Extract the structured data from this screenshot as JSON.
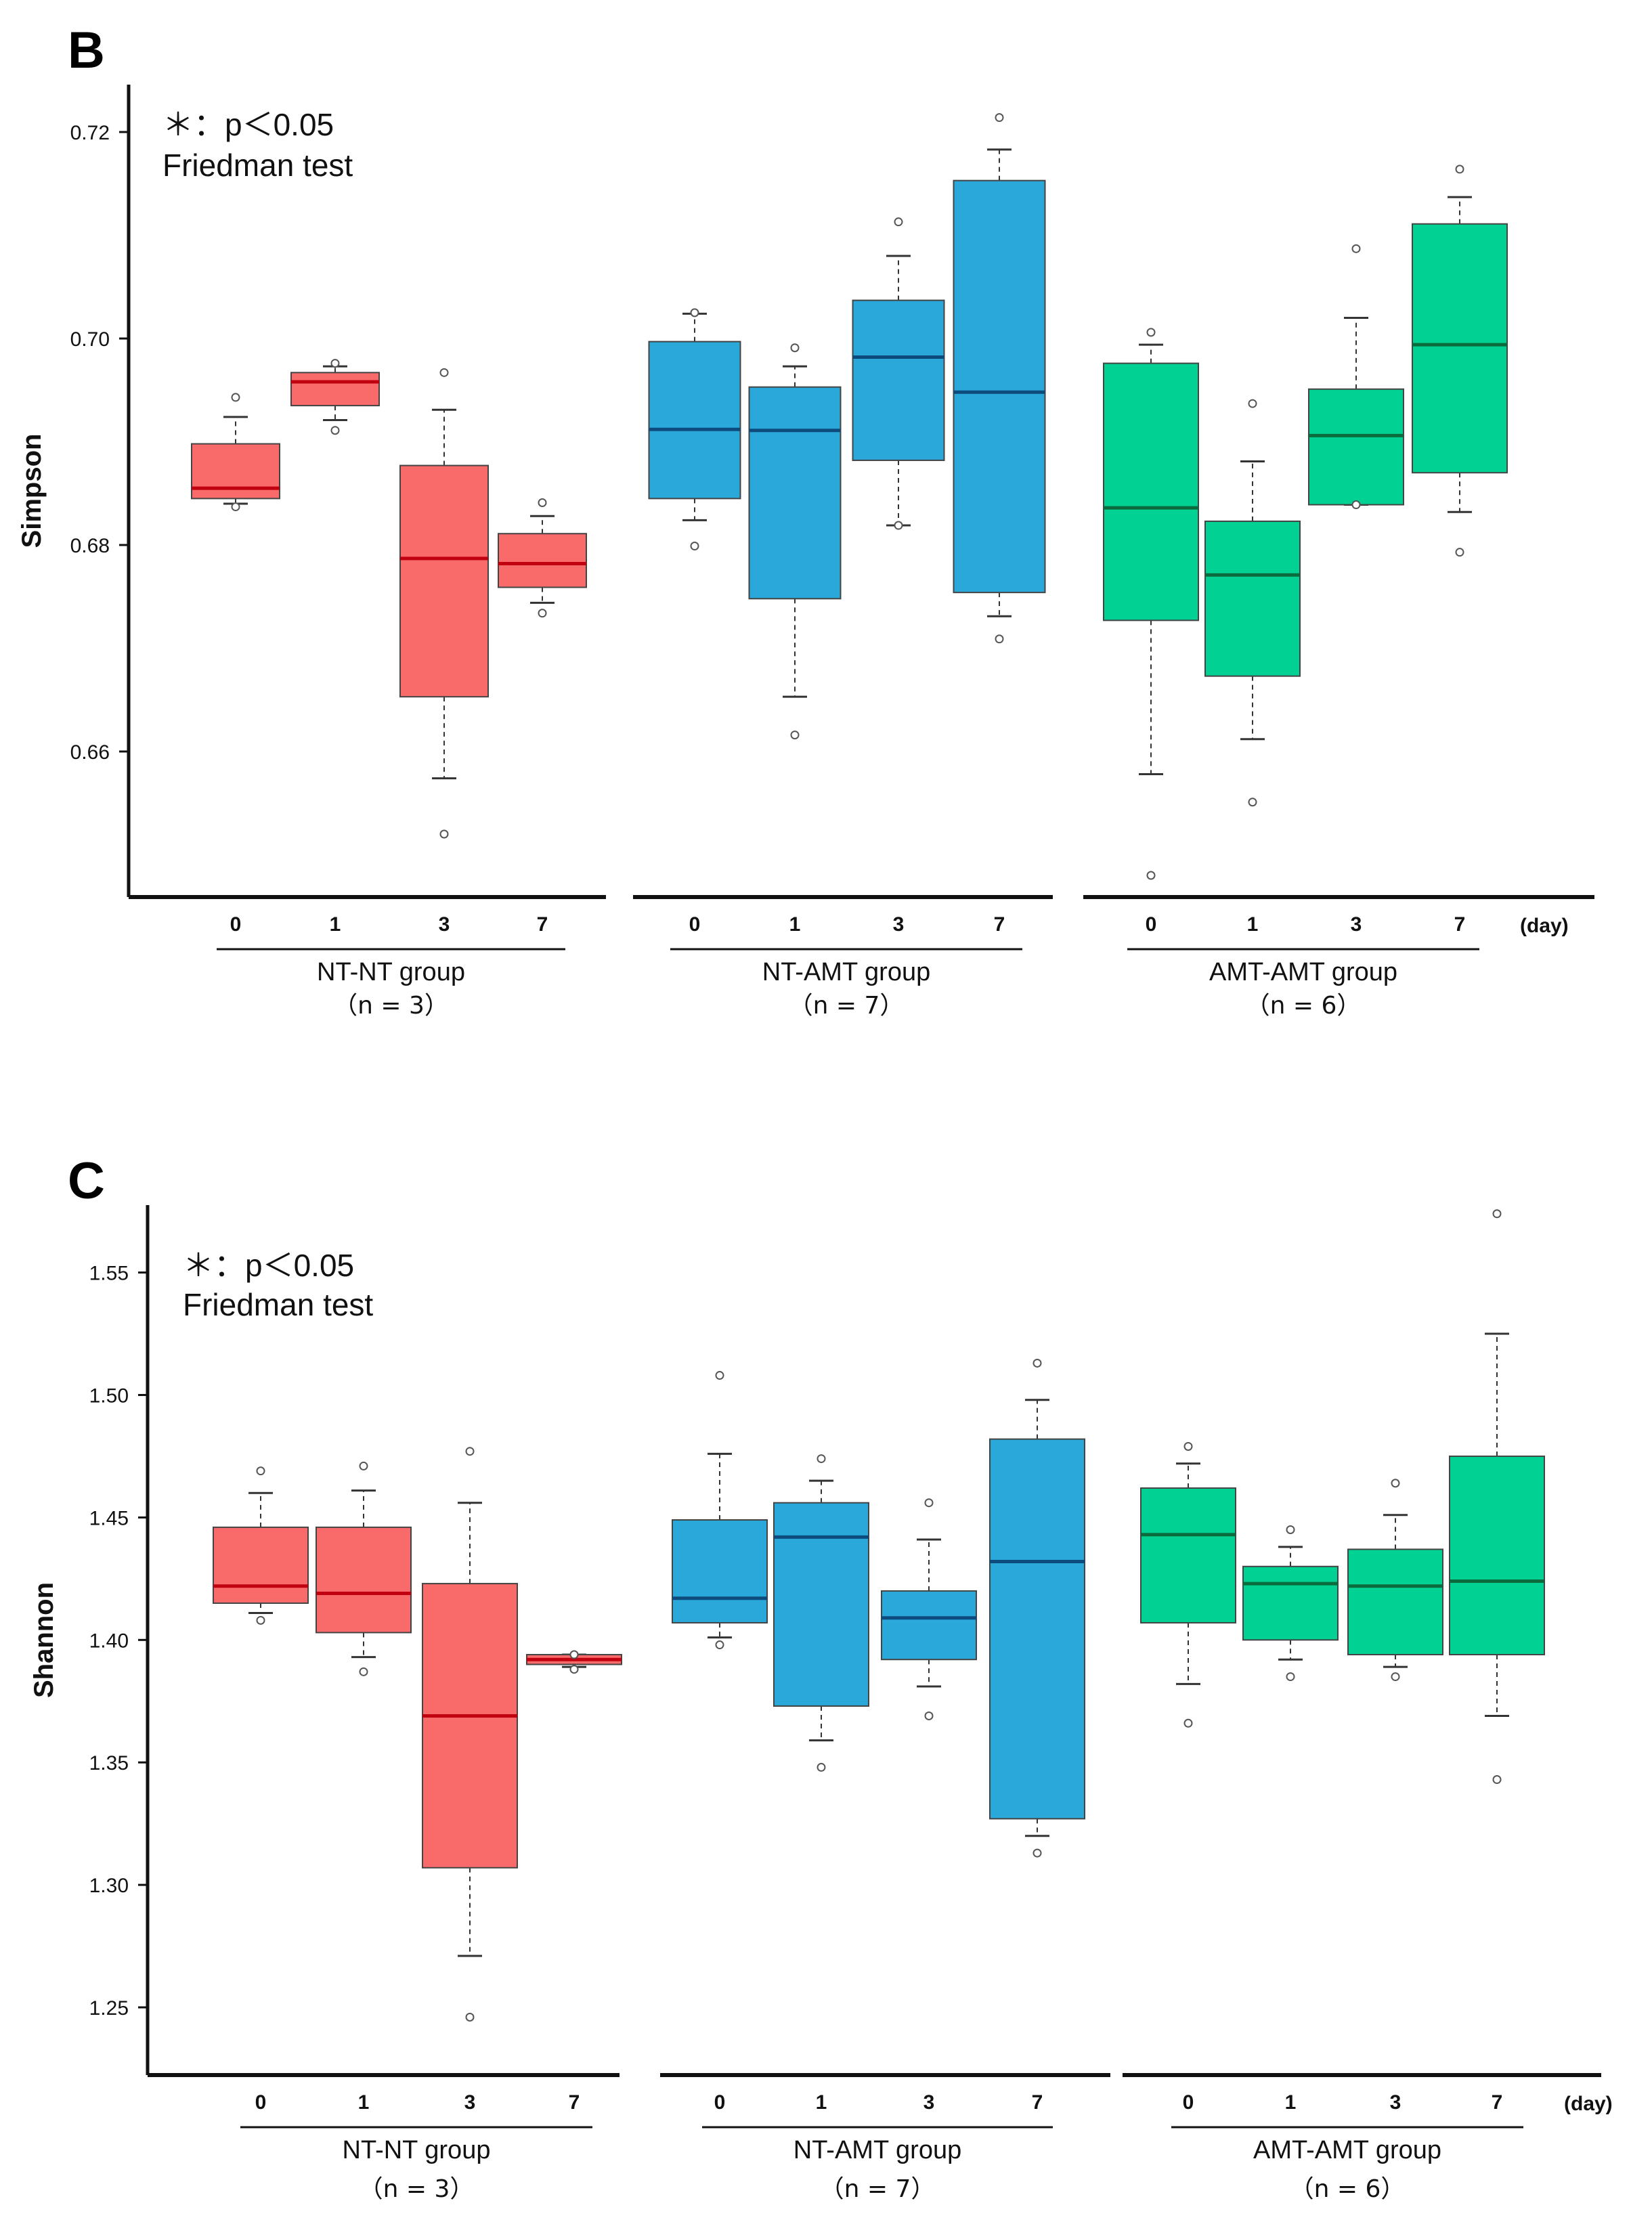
{
  "chart_data": [
    {
      "type": "boxplot",
      "panel_label": "B",
      "ylabel": "Simpson",
      "yticks": [
        "0.66",
        "0.68",
        "0.70",
        "0.72"
      ],
      "ylim": [
        0.646,
        0.724
      ],
      "annotation_line1": "＊：p＜0.05",
      "annotation_line2": "Friedman test",
      "x_unit": "(day)",
      "groups": [
        {
          "name": "NT-NT group",
          "n_label": "（n = 3）",
          "color": "#f96a6b",
          "median_color": "#c0000f",
          "boxes": [
            {
              "day": "0",
              "whisker_low": 0.684,
              "q1": 0.6845,
              "median": 0.6855,
              "q3": 0.6898,
              "whisker_high": 0.6924,
              "outliers": [
                0.6837,
                0.6943
              ]
            },
            {
              "day": "1",
              "whisker_low": 0.6921,
              "q1": 0.6935,
              "median": 0.6958,
              "q3": 0.6967,
              "whisker_high": 0.6973,
              "outliers": [
                0.6911,
                0.6976
              ]
            },
            {
              "day": "3",
              "whisker_low": 0.6574,
              "q1": 0.6653,
              "median": 0.6787,
              "q3": 0.6877,
              "whisker_high": 0.6931,
              "outliers": [
                0.652,
                0.6967
              ]
            },
            {
              "day": "7",
              "whisker_low": 0.6744,
              "q1": 0.6759,
              "median": 0.6782,
              "q3": 0.6811,
              "whisker_high": 0.6828,
              "outliers": [
                0.6734,
                0.6841
              ]
            }
          ]
        },
        {
          "name": "NT-AMT group",
          "n_label": "（n = 7）",
          "color": "#2aa8d9",
          "median_color": "#0d4b7c",
          "boxes": [
            {
              "day": "0",
              "whisker_low": 0.6824,
              "q1": 0.6845,
              "median": 0.6912,
              "q3": 0.6997,
              "whisker_high": 0.7024,
              "outliers": [
                0.6799,
                0.7025
              ]
            },
            {
              "day": "1",
              "whisker_low": 0.6653,
              "q1": 0.6748,
              "median": 0.6911,
              "q3": 0.6953,
              "whisker_high": 0.6973,
              "outliers": [
                0.6616,
                0.6991
              ]
            },
            {
              "day": "3",
              "whisker_low": 0.6819,
              "q1": 0.6882,
              "median": 0.6982,
              "q3": 0.7037,
              "whisker_high": 0.708,
              "outliers": [
                0.6819,
                0.7113
              ]
            },
            {
              "day": "7",
              "whisker_low": 0.6731,
              "q1": 0.6754,
              "median": 0.6948,
              "q3": 0.7153,
              "whisker_high": 0.7183,
              "outliers": [
                0.6709,
                0.7214
              ]
            }
          ]
        },
        {
          "name": "AMT-AMT group",
          "n_label": "（n = 6）",
          "color": "#02d194",
          "median_color": "#0c6b3c",
          "boxes": [
            {
              "day": "0",
              "whisker_low": 0.6578,
              "q1": 0.6727,
              "median": 0.6836,
              "q3": 0.6976,
              "whisker_high": 0.6994,
              "outliers": [
                0.648,
                0.7006
              ]
            },
            {
              "day": "1",
              "whisker_low": 0.6612,
              "q1": 0.6673,
              "median": 0.6771,
              "q3": 0.6823,
              "whisker_high": 0.6881,
              "outliers": [
                0.6551,
                0.6937
              ]
            },
            {
              "day": "3",
              "whisker_low": 0.6839,
              "q1": 0.6839,
              "median": 0.6906,
              "q3": 0.6951,
              "whisker_high": 0.702,
              "outliers": [
                0.6839,
                0.7087
              ]
            },
            {
              "day": "7",
              "whisker_low": 0.6832,
              "q1": 0.687,
              "median": 0.6994,
              "q3": 0.7111,
              "whisker_high": 0.7137,
              "outliers": [
                0.6793,
                0.7164
              ]
            }
          ]
        }
      ]
    },
    {
      "type": "boxplot",
      "panel_label": "C",
      "ylabel": "Shannon",
      "yticks": [
        "1.25",
        "1.30",
        "1.35",
        "1.40",
        "1.45",
        "1.50",
        "1.55"
      ],
      "ylim": [
        1.231,
        1.584
      ],
      "annotation_line1": "＊：p＜0.05",
      "annotation_line2": "Friedman test",
      "x_unit": "(day)",
      "groups": [
        {
          "name": "NT-NT group",
          "n_label": "（n = 3）",
          "color": "#f96a6b",
          "median_color": "#c0000f",
          "boxes": [
            {
              "day": "0",
              "whisker_low": 1.411,
              "q1": 1.415,
              "median": 1.422,
              "q3": 1.446,
              "whisker_high": 1.46,
              "outliers": [
                1.408,
                1.469
              ]
            },
            {
              "day": "1",
              "whisker_low": 1.393,
              "q1": 1.403,
              "median": 1.419,
              "q3": 1.446,
              "whisker_high": 1.461,
              "outliers": [
                1.387,
                1.471
              ]
            },
            {
              "day": "3",
              "whisker_low": 1.271,
              "q1": 1.307,
              "median": 1.369,
              "q3": 1.423,
              "whisker_high": 1.456,
              "outliers": [
                1.246,
                1.477
              ]
            },
            {
              "day": "7",
              "whisker_low": 1.389,
              "q1": 1.39,
              "median": 1.392,
              "q3": 1.394,
              "whisker_high": 1.394,
              "outliers": [
                1.388,
                1.394
              ]
            }
          ]
        },
        {
          "name": "NT-AMT group",
          "n_label": "（n = 7）",
          "color": "#2aa8d9",
          "median_color": "#0d4b7c",
          "boxes": [
            {
              "day": "0",
              "whisker_low": 1.401,
              "q1": 1.407,
              "median": 1.417,
              "q3": 1.449,
              "whisker_high": 1.476,
              "outliers": [
                1.398,
                1.508
              ]
            },
            {
              "day": "1",
              "whisker_low": 1.359,
              "q1": 1.373,
              "median": 1.442,
              "q3": 1.456,
              "whisker_high": 1.465,
              "outliers": [
                1.348,
                1.474
              ]
            },
            {
              "day": "3",
              "whisker_low": 1.381,
              "q1": 1.392,
              "median": 1.409,
              "q3": 1.42,
              "whisker_high": 1.441,
              "outliers": [
                1.369,
                1.456
              ]
            },
            {
              "day": "7",
              "whisker_low": 1.32,
              "q1": 1.327,
              "median": 1.432,
              "q3": 1.482,
              "whisker_high": 1.498,
              "outliers": [
                1.313,
                1.513
              ]
            }
          ]
        },
        {
          "name": "AMT-AMT group",
          "n_label": "（n = 6）",
          "color": "#02d194",
          "median_color": "#0c6b3c",
          "boxes": [
            {
              "day": "0",
              "whisker_low": 1.382,
              "q1": 1.407,
              "median": 1.443,
              "q3": 1.462,
              "whisker_high": 1.472,
              "outliers": [
                1.366,
                1.479
              ]
            },
            {
              "day": "1",
              "whisker_low": 1.392,
              "q1": 1.4,
              "median": 1.423,
              "q3": 1.43,
              "whisker_high": 1.438,
              "outliers": [
                1.385,
                1.445
              ]
            },
            {
              "day": "3",
              "whisker_low": 1.389,
              "q1": 1.394,
              "median": 1.422,
              "q3": 1.437,
              "whisker_high": 1.451,
              "outliers": [
                1.385,
                1.464
              ]
            },
            {
              "day": "7",
              "whisker_low": 1.369,
              "q1": 1.394,
              "median": 1.424,
              "q3": 1.475,
              "whisker_high": 1.525,
              "outliers": [
                1.343,
                1.574
              ]
            }
          ]
        }
      ]
    }
  ]
}
